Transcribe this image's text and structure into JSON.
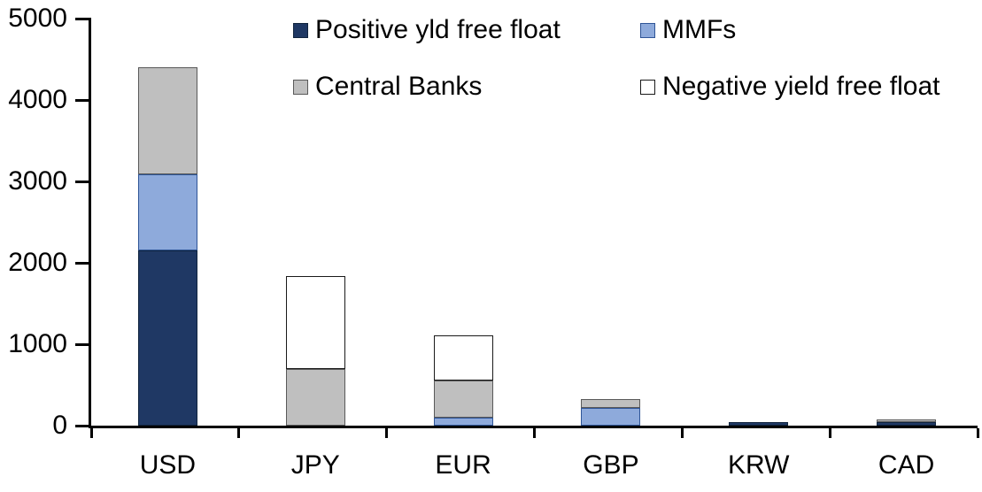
{
  "chart_data": {
    "type": "bar",
    "stacked": true,
    "title": "",
    "xlabel": "",
    "ylabel": "",
    "categories": [
      "USD",
      "JPY",
      "EUR",
      "GBP",
      "KRW",
      "CAD"
    ],
    "series": [
      {
        "name": "Positive yld free float",
        "color": "#1F3864",
        "border": "#10243E",
        "values": [
          2150,
          0,
          0,
          0,
          45,
          40
        ]
      },
      {
        "name": "MMFs",
        "color": "#8EAADB",
        "border": "#2F5597",
        "values": [
          940,
          0,
          100,
          220,
          0,
          0
        ]
      },
      {
        "name": "Central Banks",
        "color": "#BFBFBF",
        "border": "#595959",
        "values": [
          1310,
          700,
          450,
          110,
          0,
          35
        ]
      },
      {
        "name": "Negative yield free float",
        "color": "#FFFFFF",
        "border": "#1A1A1A",
        "values": [
          0,
          1140,
          560,
          0,
          0,
          0
        ]
      }
    ],
    "totals": [
      4400,
      1840,
      1110,
      330,
      45,
      75
    ],
    "ylim": [
      0,
      5000
    ],
    "yticks": [
      "0",
      "1000",
      "2000",
      "3000",
      "4000",
      "5000"
    ],
    "grid": false,
    "legend_position": "top, two columns x two rows",
    "axis_color": "#000000",
    "text_color": "#000000",
    "background_color": "#FFFFFF"
  }
}
